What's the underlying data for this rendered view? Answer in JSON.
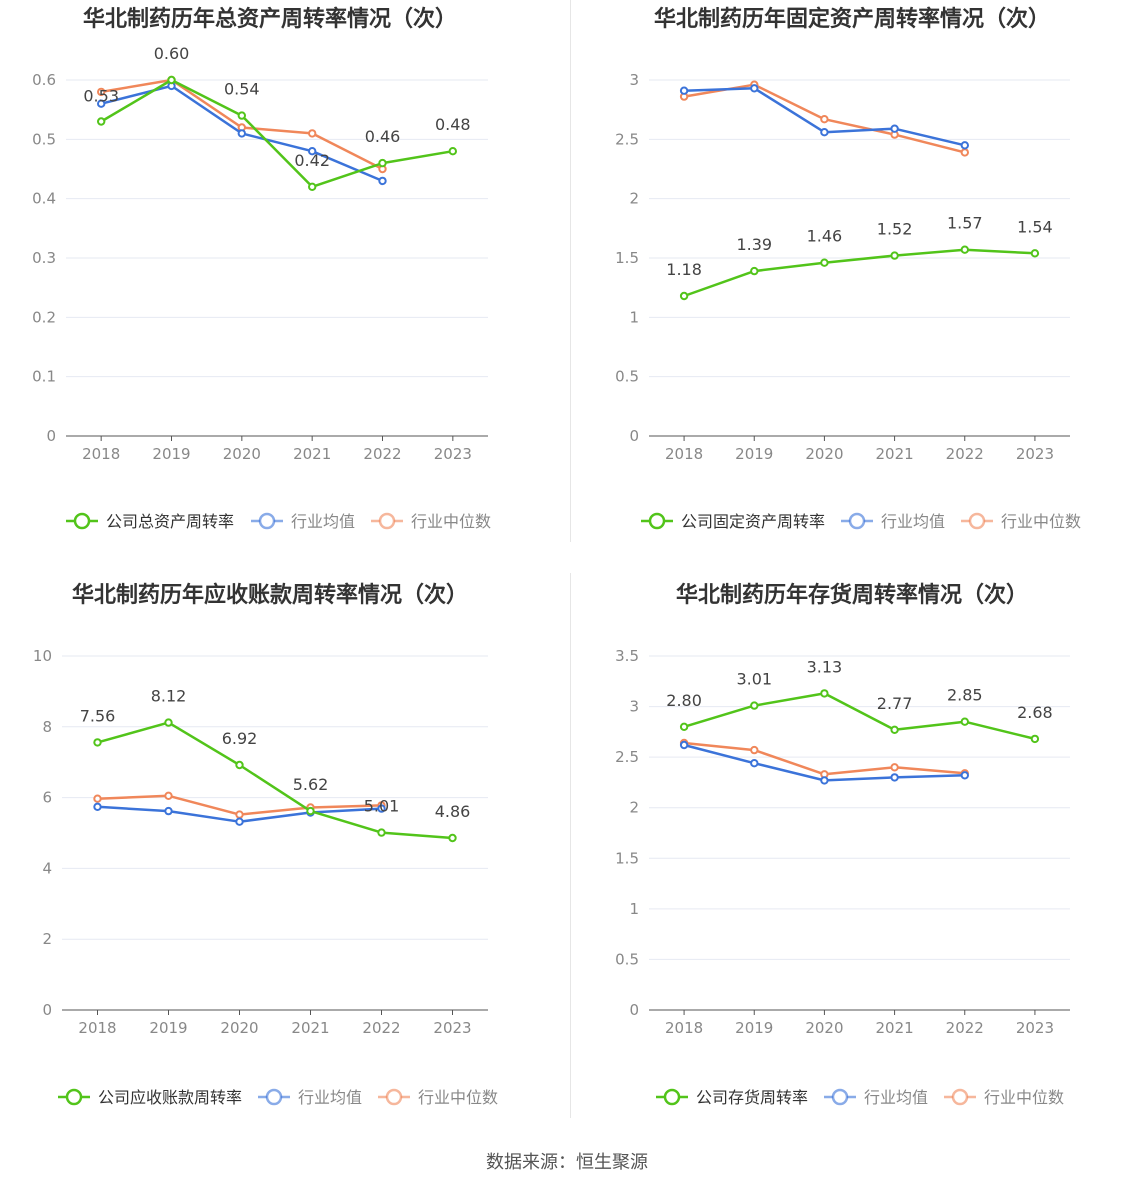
{
  "colors": {
    "company": "#52c41a",
    "avg": "#3b73d9",
    "median": "#f0875a",
    "grid": "#e6e9f2",
    "axis": "#555555",
    "tick": "#888888",
    "title": "#333333",
    "label": "#444444"
  },
  "source": "数据来源：恒生聚源",
  "charts": [
    {
      "title": "华北制药历年总资产周转率情况（次）",
      "legend": [
        "公司总资产周转率",
        "行业均值",
        "行业中位数"
      ],
      "chart_data": {
        "type": "line",
        "categories": [
          "2018",
          "2019",
          "2020",
          "2021",
          "2022",
          "2023"
        ],
        "ylim": [
          0,
          0.6
        ],
        "yticks": [
          "0",
          "0.1",
          "0.2",
          "0.3",
          "0.4",
          "0.5",
          "0.6"
        ],
        "series": [
          {
            "name": "公司总资产周转率",
            "values": [
              0.53,
              0.6,
              0.54,
              0.42,
              0.46,
              0.48
            ],
            "labels": [
              "0.53",
              "0.60",
              "0.54",
              "0.42",
              "0.46",
              "0.48"
            ]
          },
          {
            "name": "行业均值",
            "values": [
              0.56,
              0.59,
              0.51,
              0.48,
              0.43,
              null
            ]
          },
          {
            "name": "行业中位数",
            "values": [
              0.58,
              0.6,
              0.52,
              0.51,
              0.45,
              null
            ]
          }
        ]
      }
    },
    {
      "title": "华北制药历年固定资产周转率情况（次）",
      "legend": [
        "公司固定资产周转率",
        "行业均值",
        "行业中位数"
      ],
      "chart_data": {
        "type": "line",
        "categories": [
          "2018",
          "2019",
          "2020",
          "2021",
          "2022",
          "2023"
        ],
        "ylim": [
          0,
          3
        ],
        "yticks": [
          "0",
          "0.5",
          "1",
          "1.5",
          "2",
          "2.5",
          "3"
        ],
        "series": [
          {
            "name": "公司固定资产周转率",
            "values": [
              1.18,
              1.39,
              1.46,
              1.52,
              1.57,
              1.54
            ],
            "labels": [
              "1.18",
              "1.39",
              "1.46",
              "1.52",
              "1.57",
              "1.54"
            ]
          },
          {
            "name": "行业均值",
            "values": [
              2.91,
              2.93,
              2.56,
              2.59,
              2.45,
              null
            ]
          },
          {
            "name": "行业中位数",
            "values": [
              2.86,
              2.96,
              2.67,
              2.54,
              2.39,
              null
            ]
          }
        ]
      }
    },
    {
      "title": "华北制药历年应收账款周转率情况（次）",
      "legend": [
        "公司应收账款周转率",
        "行业均值",
        "行业中位数"
      ],
      "chart_data": {
        "type": "line",
        "categories": [
          "2018",
          "2019",
          "2020",
          "2021",
          "2022",
          "2023"
        ],
        "ylim": [
          0,
          10
        ],
        "yticks": [
          "0",
          "2",
          "4",
          "6",
          "8",
          "10"
        ],
        "series": [
          {
            "name": "公司应收账款周转率",
            "values": [
              7.56,
              8.12,
              6.92,
              5.62,
              5.01,
              4.86
            ],
            "labels": [
              "7.56",
              "8.12",
              "6.92",
              "5.62",
              "5.01",
              "4.86"
            ]
          },
          {
            "name": "行业均值",
            "values": [
              5.74,
              5.62,
              5.32,
              5.58,
              5.69,
              null
            ]
          },
          {
            "name": "行业中位数",
            "values": [
              5.97,
              6.05,
              5.52,
              5.72,
              5.78,
              null
            ]
          }
        ]
      }
    },
    {
      "title": "华北制药历年存货周转率情况（次）",
      "legend": [
        "公司存货周转率",
        "行业均值",
        "行业中位数"
      ],
      "chart_data": {
        "type": "line",
        "categories": [
          "2018",
          "2019",
          "2020",
          "2021",
          "2022",
          "2023"
        ],
        "ylim": [
          0,
          3.5
        ],
        "yticks": [
          "0",
          "0.5",
          "1",
          "1.5",
          "2",
          "2.5",
          "3",
          "3.5"
        ],
        "series": [
          {
            "name": "公司存货周转率",
            "values": [
              2.8,
              3.01,
              3.13,
              2.77,
              2.85,
              2.68
            ],
            "labels": [
              "2.80",
              "3.01",
              "3.13",
              "2.77",
              "2.85",
              "2.68"
            ]
          },
          {
            "name": "行业均值",
            "values": [
              2.62,
              2.44,
              2.27,
              2.3,
              2.32,
              null
            ]
          },
          {
            "name": "行业中位数",
            "values": [
              2.64,
              2.57,
              2.33,
              2.4,
              2.34,
              null
            ]
          }
        ]
      }
    }
  ]
}
